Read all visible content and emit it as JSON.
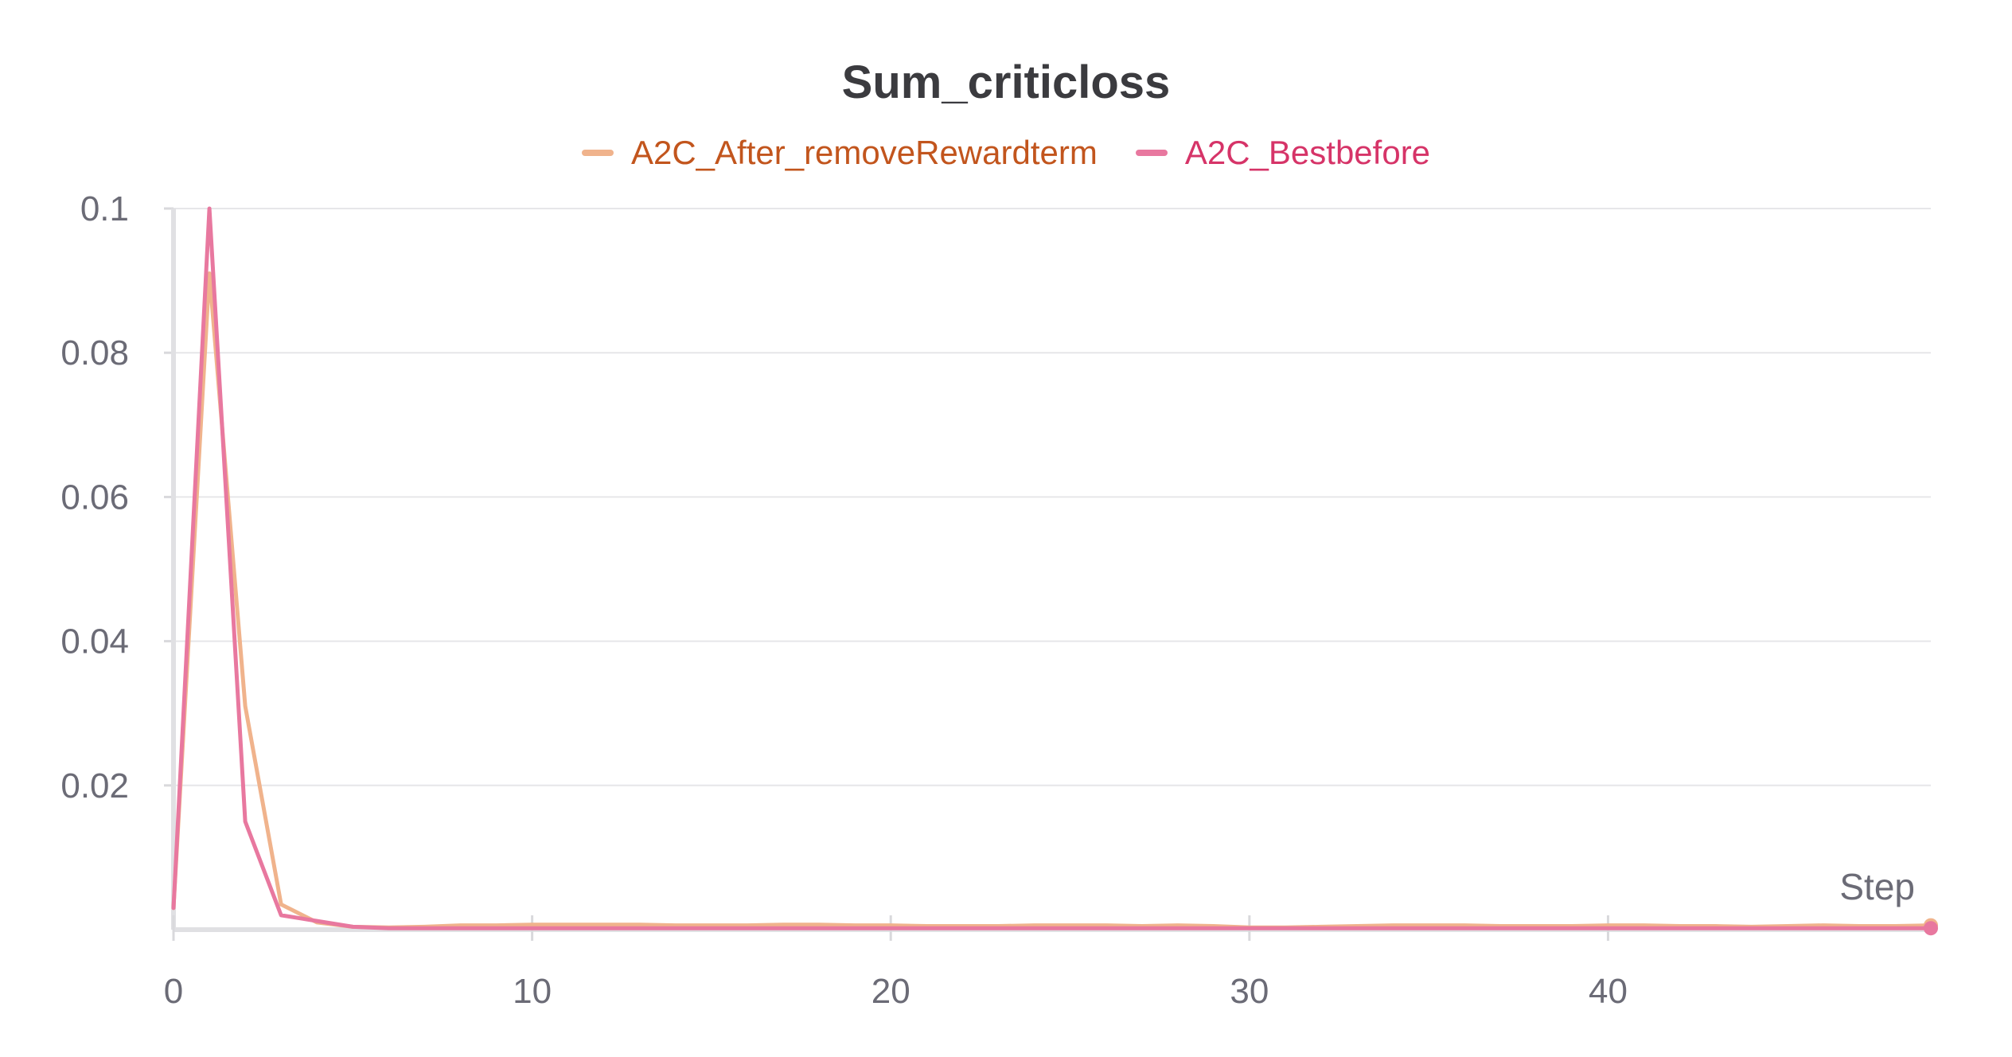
{
  "chart_data": {
    "type": "line",
    "title": "Sum_criticloss",
    "xlabel": "Step",
    "ylabel": "",
    "xlim": [
      0,
      49
    ],
    "ylim": [
      0,
      0.1
    ],
    "x_ticks": [
      0,
      10,
      20,
      30,
      40
    ],
    "y_ticks": [
      0.02,
      0.04,
      0.06,
      0.08,
      0.1
    ],
    "x_tick_labels": [
      "0",
      "10",
      "20",
      "30",
      "40"
    ],
    "y_tick_labels": [
      "0.02",
      "0.04",
      "0.06",
      "0.08",
      "0.1"
    ],
    "grid": true,
    "legend_position": "top-center",
    "series": [
      {
        "name": "A2C_After_removeRewardterm",
        "color": "#f0b38c",
        "text_color": "#c2551d",
        "x": [
          0,
          1,
          2,
          3,
          4,
          5,
          6,
          7,
          8,
          9,
          10,
          11,
          12,
          13,
          14,
          15,
          16,
          17,
          18,
          19,
          20,
          21,
          22,
          23,
          24,
          25,
          26,
          27,
          28,
          29,
          30,
          31,
          32,
          33,
          34,
          35,
          36,
          37,
          38,
          39,
          40,
          41,
          42,
          43,
          44,
          45,
          46,
          47,
          48,
          49
        ],
        "y": [
          0.003,
          0.091,
          0.031,
          0.0035,
          0.001,
          0.0004,
          0.0003,
          0.0004,
          0.0006,
          0.0006,
          0.0007,
          0.0007,
          0.0007,
          0.0007,
          0.0006,
          0.0006,
          0.0006,
          0.0007,
          0.0007,
          0.0006,
          0.0006,
          0.0005,
          0.0005,
          0.0005,
          0.0006,
          0.0006,
          0.0006,
          0.0005,
          0.0006,
          0.0005,
          0.0003,
          0.0003,
          0.0004,
          0.0005,
          0.0006,
          0.0006,
          0.0006,
          0.0005,
          0.0005,
          0.0005,
          0.0006,
          0.0006,
          0.0005,
          0.0005,
          0.0004,
          0.0005,
          0.0006,
          0.0005,
          0.0005,
          0.0006
        ]
      },
      {
        "name": "A2C_Bestbefore",
        "color": "#e8789f",
        "text_color": "#d63468",
        "x": [
          0,
          1,
          2,
          3,
          4,
          5,
          6,
          7,
          8,
          9,
          10,
          11,
          12,
          13,
          14,
          15,
          16,
          17,
          18,
          19,
          20,
          21,
          22,
          23,
          24,
          25,
          26,
          27,
          28,
          29,
          30,
          31,
          32,
          33,
          34,
          35,
          36,
          37,
          38,
          39,
          40,
          41,
          42,
          43,
          44,
          45,
          46,
          47,
          48,
          49
        ],
        "y": [
          0.003,
          0.1,
          0.015,
          0.002,
          0.0012,
          0.0004,
          0.0002,
          0.0002,
          0.0002,
          0.0002,
          0.0002,
          0.0002,
          0.0002,
          0.0002,
          0.0002,
          0.0002,
          0.0002,
          0.0002,
          0.0002,
          0.0002,
          0.0002,
          0.0002,
          0.0002,
          0.0002,
          0.0002,
          0.0002,
          0.0002,
          0.0002,
          0.0002,
          0.0002,
          0.0002,
          0.0002,
          0.0002,
          0.0002,
          0.0002,
          0.0002,
          0.0002,
          0.0002,
          0.0002,
          0.0002,
          0.0002,
          0.0002,
          0.0002,
          0.0002,
          0.0002,
          0.0002,
          0.0002,
          0.0002,
          0.0002,
          0.0002
        ]
      }
    ]
  }
}
